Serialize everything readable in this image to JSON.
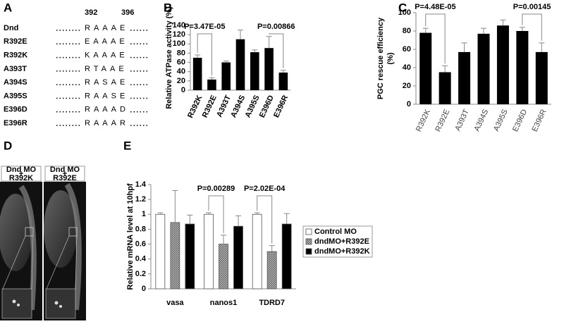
{
  "panel_labels": [
    "A",
    "B",
    "C",
    "D",
    "E"
  ],
  "alignment": {
    "positions": [
      "392",
      "396"
    ],
    "rows": [
      {
        "name": "Dnd",
        "seq": "RAAAE"
      },
      {
        "name": "R392E",
        "seq": "EAAAE"
      },
      {
        "name": "R392K",
        "seq": "KAAAE"
      },
      {
        "name": "A393T",
        "seq": "RTAAE"
      },
      {
        "name": "A394S",
        "seq": "RASAE"
      },
      {
        "name": "A395S",
        "seq": "RAASE"
      },
      {
        "name": "E396D",
        "seq": "RAAAD"
      },
      {
        "name": "E396R",
        "seq": "RAAAR"
      }
    ]
  },
  "images": [
    {
      "label": [
        "Dnd MO",
        "+",
        "R392K"
      ]
    },
    {
      "label": [
        "Dnd MO",
        "+",
        "R392E"
      ]
    }
  ],
  "chart_data": [
    {
      "type": "bar",
      "ylabel": [
        "Relative ATPase activity (%)"
      ],
      "categories": [
        "R392K",
        "R392E",
        "A393T",
        "A394S",
        "A395S",
        "E396D",
        "E396R"
      ],
      "values": [
        70,
        23,
        60,
        110,
        82,
        91,
        38
      ],
      "errors": [
        6,
        4,
        3,
        20,
        5,
        25,
        5
      ],
      "color": "#000000",
      "ylim": [
        0,
        140
      ],
      "yticks": [
        0,
        20,
        40,
        60,
        80,
        100,
        120,
        140
      ],
      "annotations": [
        "P=3.47E-05",
        "P=0.00866"
      ]
    },
    {
      "type": "bar",
      "ylabel": [
        "PGC rescue efficiency",
        "(%)"
      ],
      "categories": [
        "R392K",
        "R392E",
        "A393T",
        "A394S",
        "A395S",
        "E396D",
        "E396R"
      ],
      "values": [
        78,
        35,
        57,
        77,
        86,
        80,
        57
      ],
      "errors": [
        5,
        7,
        10,
        6,
        6,
        4,
        10
      ],
      "color": "#000000",
      "ylim": [
        0,
        100
      ],
      "yticks": [
        0,
        20,
        40,
        60,
        80,
        100
      ],
      "annotations": [
        "P=4.48E-05",
        "P=0.00145"
      ]
    },
    {
      "type": "grouped_bar",
      "ylabel": [
        "Relative mRNA level at 10hpf"
      ],
      "categories": [
        "vasa",
        "nanos1",
        "TDRD7"
      ],
      "series": [
        {
          "name": "Control MO",
          "color": "#ffffff",
          "values": [
            1,
            1,
            1
          ],
          "errors": [
            0.02,
            0.02,
            0.02
          ]
        },
        {
          "name": "dndMO+R392E",
          "color": "#888888",
          "hatch": true,
          "values": [
            0.89,
            0.6,
            0.5
          ],
          "errors": [
            0.43,
            0.12,
            0.08
          ]
        },
        {
          "name": "dndMO+R392K",
          "color": "#000000",
          "values": [
            0.87,
            0.84,
            0.87
          ],
          "errors": [
            0.12,
            0.14,
            0.14
          ]
        }
      ],
      "ylim": [
        0,
        1.4
      ],
      "yticks": [
        0,
        0.2,
        0.4,
        0.6,
        0.8,
        1,
        1.2,
        1.4
      ],
      "annotations": [
        "P=0.00289",
        "P=2.02E-04"
      ],
      "legend": "right"
    }
  ]
}
